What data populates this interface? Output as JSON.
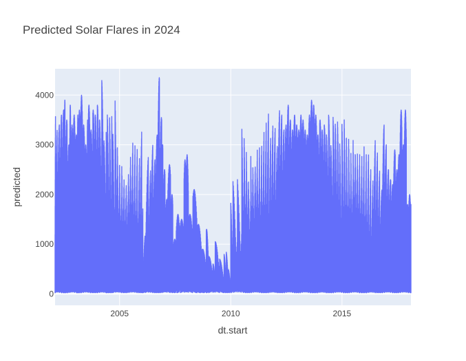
{
  "chart_data": {
    "type": "line",
    "title": "Predicted Solar Flares in 2024",
    "xlabel": "dt.start",
    "ylabel": "predicted",
    "xlim": [
      2002.1,
      2018.1
    ],
    "ylim": [
      -230,
      4530
    ],
    "x_ticks": [
      2005,
      2010,
      2015
    ],
    "x_tick_labels": [
      "2005",
      "2010",
      "2015"
    ],
    "y_ticks": [
      0,
      1000,
      2000,
      3000,
      4000
    ],
    "y_tick_labels": [
      "0",
      "1000",
      "2000",
      "3000",
      "4000"
    ],
    "grid": true,
    "legend": "none",
    "colors": {
      "series": "#636efa",
      "plot_bg": "#e5ecf6",
      "grid": "#ffffff"
    },
    "series": [
      {
        "x": [
          2002.1,
          2002.12,
          2002.2,
          2002.3,
          2002.4,
          2002.5,
          2002.55,
          2002.65,
          2002.75,
          2002.8,
          2002.9,
          2003.0,
          2003.1,
          2003.15,
          2003.25,
          2003.35,
          2003.45,
          2003.55,
          2003.6,
          2003.7,
          2003.8,
          2003.9,
          2004.0,
          2004.1,
          2004.2,
          2004.3,
          2004.4,
          2004.45,
          2004.55,
          2004.65,
          2004.7,
          2004.8,
          2004.9,
          2005.0,
          2005.1,
          2005.2,
          2005.3,
          2005.4,
          2005.5,
          2005.6,
          2005.7,
          2005.8,
          2005.9,
          2006.0,
          2006.05,
          2006.15,
          2006.3,
          2006.4,
          2006.5,
          2006.6,
          2006.7,
          2006.8,
          2006.9,
          2006.95,
          2007.05,
          2007.15,
          2007.3,
          2007.4,
          2007.55,
          2007.7,
          2007.9,
          2008.0,
          2008.1,
          2008.3,
          2008.5,
          2008.7,
          2008.9,
          2009.0,
          2009.2,
          2009.3,
          2009.5,
          2009.7,
          2009.8,
          2009.9,
          2010.0,
          2010.1,
          2010.3,
          2010.5,
          2010.6,
          2010.7,
          2010.8,
          2010.9,
          2011.0,
          2011.1,
          2011.2,
          2011.3,
          2011.4,
          2011.5,
          2011.6,
          2011.7,
          2011.8,
          2011.9,
          2012.0,
          2012.1,
          2012.2,
          2012.3,
          2012.4,
          2012.5,
          2012.6,
          2012.7,
          2012.8,
          2012.9,
          2013.0,
          2013.1,
          2013.2,
          2013.3,
          2013.4,
          2013.5,
          2013.6,
          2013.7,
          2013.8,
          2013.9,
          2014.0,
          2014.1,
          2014.2,
          2014.3,
          2014.4,
          2014.5,
          2014.6,
          2014.7,
          2014.8,
          2014.9,
          2015.0,
          2015.1,
          2015.2,
          2015.3,
          2015.4,
          2015.5,
          2015.6,
          2015.7,
          2015.8,
          2015.9,
          2016.0,
          2016.1,
          2016.2,
          2016.3,
          2016.4,
          2016.5,
          2016.6,
          2016.7,
          2016.8,
          2016.9,
          2017.0,
          2017.1,
          2017.2,
          2017.3,
          2017.4,
          2017.5,
          2017.6,
          2017.7,
          2017.8,
          2017.9,
          2018.0,
          2018.1
        ],
        "y": [
          3600,
          3300,
          3400,
          3600,
          3700,
          3900,
          3500,
          3000,
          3800,
          3400,
          3600,
          3200,
          3600,
          3700,
          4000,
          3400,
          3000,
          3500,
          3800,
          3300,
          3700,
          3600,
          3800,
          3500,
          4300,
          3100,
          3300,
          3700,
          3700,
          3800,
          3500,
          4350,
          3400,
          3100,
          3200,
          3000,
          3000,
          3500,
          3700,
          3500,
          3300,
          3000,
          3500,
          1800,
          1200,
          2800,
          2500,
          3000,
          2700,
          3200,
          4350,
          3550,
          3000,
          2500,
          1900,
          2600,
          2000,
          1100,
          1600,
          1500,
          2700,
          2800,
          1600,
          2100,
          1400,
          900,
          1300,
          750,
          600,
          1050,
          700,
          800,
          850,
          500,
          1900,
          2400,
          2500,
          3700,
          3600,
          3400,
          2800,
          3600,
          3300,
          3700,
          3600,
          3500,
          3700,
          3800,
          3900,
          3300,
          3500,
          3400,
          3000,
          3700,
          3600,
          3300,
          3400,
          3800,
          3500,
          3300,
          3600,
          3400,
          3300,
          3600,
          3500,
          3300,
          3200,
          3600,
          3900,
          3800,
          3600,
          3200,
          3500,
          3300,
          3400,
          3200,
          3600,
          3000,
          3600,
          3500,
          3600,
          3200,
          3700,
          3900,
          3600,
          3700,
          3500,
          4000,
          3800,
          3600,
          3400,
          3500,
          3200,
          3100,
          2700,
          2400,
          3200,
          2900,
          2500,
          2100,
          3400,
          3000,
          2500,
          2300,
          2200,
          2900,
          2500,
          2800,
          3700,
          3000,
          3700,
          1800,
          2000,
          1800
        ],
        "name": ""
      }
    ]
  }
}
